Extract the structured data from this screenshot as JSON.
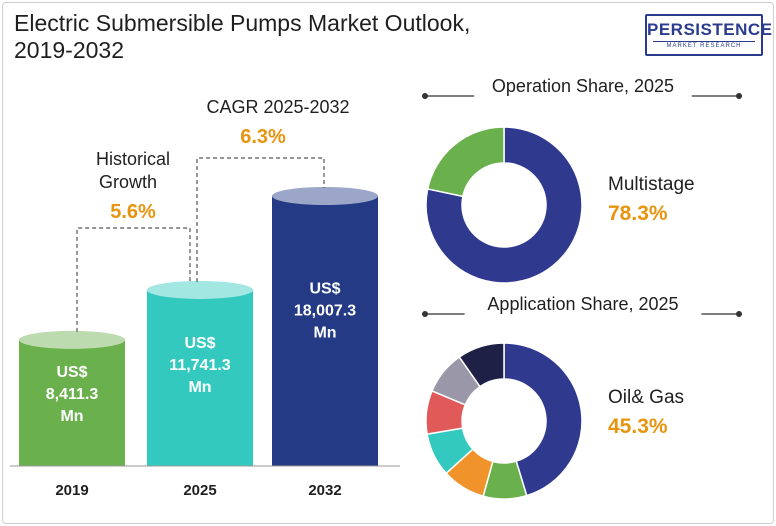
{
  "title_line1": "Electric Submersible Pumps Market Outlook,",
  "title_line2": "2019-2032",
  "logo": {
    "name": "PERSISTENCE",
    "sub": "MARKET RESEARCH"
  },
  "colors": {
    "accent": "#e8940f",
    "bar2019": "#6ab04c",
    "bar2025": "#33c9bf",
    "bar2032": "#243a84",
    "donut_main": "#2f3a8f"
  },
  "chart_data": [
    {
      "type": "bar",
      "categories": [
        "2019",
        "2025",
        "2032"
      ],
      "values": [
        8411.3,
        11741.3,
        18007.3
      ],
      "value_labels": [
        [
          "US$",
          "8,411.3",
          "Mn"
        ],
        [
          "US$",
          "11,741.3",
          "Mn"
        ],
        [
          "US$",
          "18,007.3",
          "Mn"
        ]
      ],
      "annotations": {
        "historical": {
          "label_line1": "Historical",
          "label_line2": "Growth",
          "value": "5.6%"
        },
        "cagr": {
          "label": "CAGR 2025-2032",
          "value": "6.3%"
        }
      }
    },
    {
      "type": "pie",
      "title": "Operation Share, 2025",
      "slices": [
        {
          "value": 78.3,
          "color": "#2f3a8f"
        },
        {
          "value": 21.7,
          "color": "#6ab04c"
        }
      ],
      "highlight": {
        "label": "Multistage",
        "value": "78.3%"
      }
    },
    {
      "type": "pie",
      "title": "Application Share, 2025",
      "slices": [
        {
          "value": 45.3,
          "color": "#2f3a8f"
        },
        {
          "value": 9.0,
          "color": "#6ab04c"
        },
        {
          "value": 9.0,
          "color": "#f0932b"
        },
        {
          "value": 9.0,
          "color": "#33c9bf"
        },
        {
          "value": 9.0,
          "color": "#e05a5a"
        },
        {
          "value": 9.0,
          "color": "#9a98a8"
        },
        {
          "value": 9.7,
          "color": "#1e2145"
        }
      ],
      "highlight": {
        "label": "Oil& Gas",
        "value": "45.3%"
      }
    }
  ]
}
